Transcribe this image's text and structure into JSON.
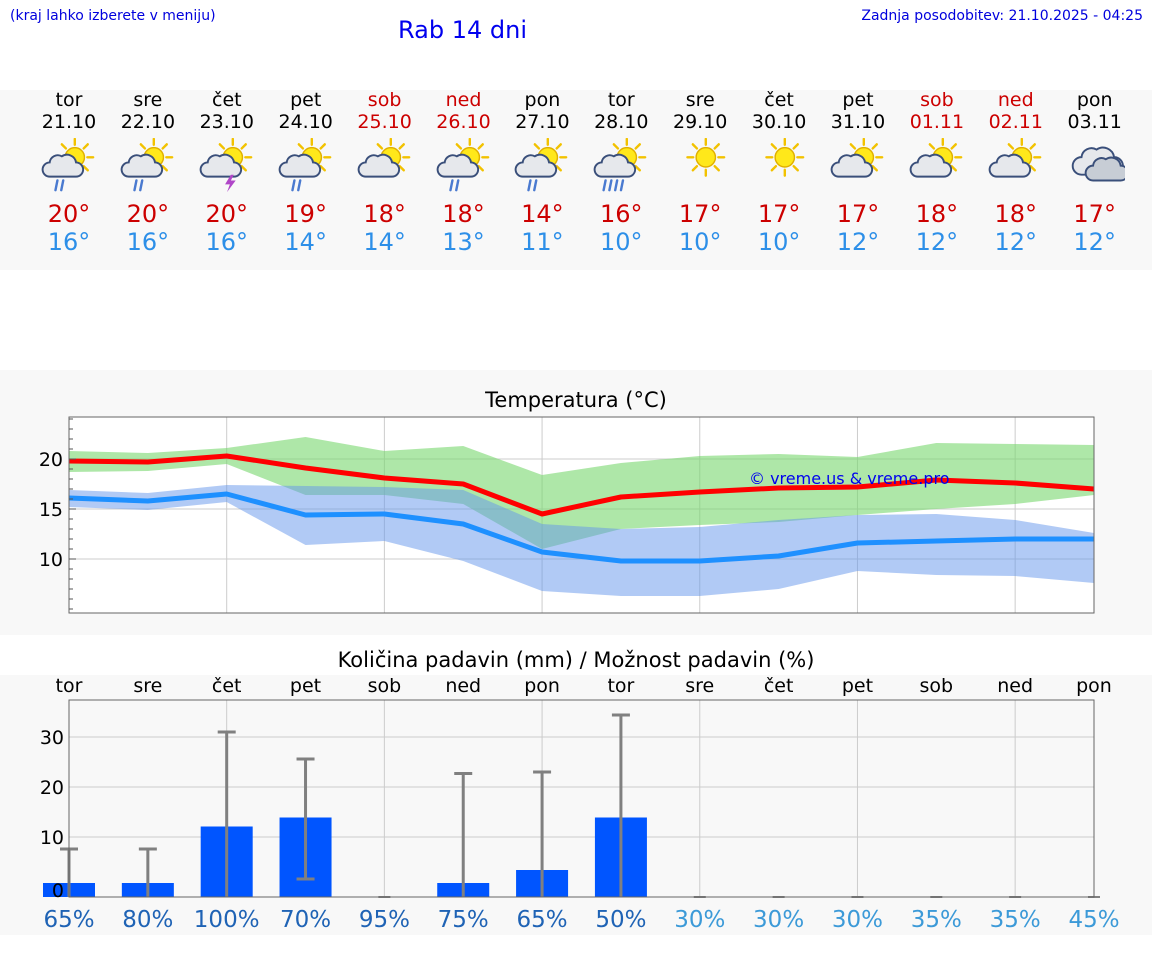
{
  "header": {
    "menu_hint": "(kraj lahko izberete v meniju)",
    "title": "Rab 14 dni",
    "updated": "Zadnja posodobitev: 21.10.2025 - 04:25"
  },
  "colors": {
    "weekday": "#000000",
    "weekend": "#cc0000",
    "tmax": "#cc0000",
    "tmin": "#2d8fe8",
    "max_line": "#ff0000",
    "min_line": "#1e90ff",
    "bar": "#0055ff",
    "whisker": "#808080"
  },
  "days": [
    {
      "name": "tor",
      "date": "21.10",
      "weekend": false,
      "icon": "sun-cloud-rain-icon",
      "tmax": "20°",
      "tmin": "16°"
    },
    {
      "name": "sre",
      "date": "22.10",
      "weekend": false,
      "icon": "sun-cloud-rain-icon",
      "tmax": "20°",
      "tmin": "16°"
    },
    {
      "name": "čet",
      "date": "23.10",
      "weekend": false,
      "icon": "sun-cloud-thunder-icon",
      "tmax": "20°",
      "tmin": "16°"
    },
    {
      "name": "pet",
      "date": "24.10",
      "weekend": false,
      "icon": "sun-cloud-rain-icon",
      "tmax": "19°",
      "tmin": "14°"
    },
    {
      "name": "sob",
      "date": "25.10",
      "weekend": true,
      "icon": "sun-cloud-icon",
      "tmax": "18°",
      "tmin": "14°"
    },
    {
      "name": "ned",
      "date": "26.10",
      "weekend": true,
      "icon": "sun-cloud-rain-icon",
      "tmax": "18°",
      "tmin": "13°"
    },
    {
      "name": "pon",
      "date": "27.10",
      "weekend": false,
      "icon": "sun-cloud-rain-icon",
      "tmax": "14°",
      "tmin": "11°"
    },
    {
      "name": "tor",
      "date": "28.10",
      "weekend": false,
      "icon": "sun-cloud-heavy-rain-icon",
      "tmax": "16°",
      "tmin": "10°"
    },
    {
      "name": "sre",
      "date": "29.10",
      "weekend": false,
      "icon": "sun-icon",
      "tmax": "17°",
      "tmin": "10°"
    },
    {
      "name": "čet",
      "date": "30.10",
      "weekend": false,
      "icon": "sun-icon",
      "tmax": "17°",
      "tmin": "10°"
    },
    {
      "name": "pet",
      "date": "31.10",
      "weekend": false,
      "icon": "sun-cloud-icon",
      "tmax": "17°",
      "tmin": "12°"
    },
    {
      "name": "sob",
      "date": "01.11",
      "weekend": true,
      "icon": "sun-cloud-icon",
      "tmax": "18°",
      "tmin": "12°"
    },
    {
      "name": "ned",
      "date": "02.11",
      "weekend": true,
      "icon": "sun-cloud-icon",
      "tmax": "18°",
      "tmin": "12°"
    },
    {
      "name": "pon",
      "date": "03.11",
      "weekend": false,
      "icon": "cloud-icon",
      "tmax": "17°",
      "tmin": "12°"
    }
  ],
  "chart_data": [
    {
      "type": "line",
      "title": "Temperatura (°C)",
      "watermark": "© vreme.us & vreme.pro",
      "x": [
        0,
        1,
        2,
        3,
        4,
        5,
        6,
        7,
        8,
        9,
        10,
        11,
        12,
        13
      ],
      "ylim": [
        4.6,
        24.2
      ],
      "yticks": [
        10,
        15,
        20
      ],
      "grid": true,
      "series": [
        {
          "values": [
            19.8,
            19.7,
            20.3,
            19.1,
            18.1,
            17.5,
            14.5,
            16.2,
            16.7,
            17.1,
            17.2,
            17.9,
            17.6,
            17.0
          ]
        },
        {
          "values": [
            16.1,
            15.8,
            16.5,
            14.4,
            14.5,
            13.5,
            10.7,
            9.8,
            9.8,
            10.3,
            11.6,
            11.8,
            12.0,
            12.0
          ]
        }
      ],
      "bands": [
        {
          "lower": [
            18.7,
            18.8,
            19.5,
            16.4,
            16.4,
            15.5,
            11.0,
            13.0,
            13.4,
            13.7,
            14.4,
            15.0,
            15.5,
            16.4
          ],
          "upper": [
            20.8,
            20.6,
            21.1,
            22.2,
            20.8,
            21.3,
            18.4,
            19.6,
            20.3,
            20.5,
            20.2,
            21.6,
            21.5,
            21.4
          ]
        },
        {
          "lower": [
            15.2,
            14.9,
            15.7,
            11.4,
            11.8,
            9.8,
            6.8,
            6.3,
            6.3,
            7.0,
            8.8,
            8.4,
            8.3,
            7.6
          ],
          "upper": [
            16.9,
            16.6,
            17.4,
            17.3,
            17.2,
            16.9,
            13.5,
            13.0,
            13.2,
            13.9,
            14.4,
            14.5,
            13.9,
            12.6
          ]
        }
      ]
    },
    {
      "type": "bar",
      "title": "Količina padavin (mm) / Možnost padavin (%)",
      "categories": [
        "tor",
        "sre",
        "čet",
        "pet",
        "sob",
        "ned",
        "pon",
        "tor",
        "sre",
        "čet",
        "pet",
        "sob",
        "ned",
        "pon"
      ],
      "values": [
        0.8,
        0.8,
        12.1,
        13.9,
        0,
        0.8,
        3.4,
        13.9,
        0,
        0,
        0,
        0,
        0,
        0
      ],
      "error_low": [
        0,
        0,
        0,
        1.6,
        0,
        0,
        0,
        0,
        0,
        0,
        0,
        0,
        0,
        0
      ],
      "error_high": [
        7.6,
        7.6,
        31.0,
        25.6,
        0,
        22.7,
        23.0,
        34.4,
        0,
        0,
        0,
        0,
        0,
        0
      ],
      "ylim": [
        -2,
        37.4
      ],
      "yticks": [
        0,
        10,
        20,
        30
      ],
      "grid": true,
      "probabilities": [
        "65%",
        "80%",
        "100%",
        "70%",
        "95%",
        "75%",
        "65%",
        "50%",
        "30%",
        "30%",
        "30%",
        "35%",
        "35%",
        "45%"
      ],
      "prob_high": [
        true,
        true,
        true,
        true,
        true,
        true,
        true,
        true,
        false,
        false,
        false,
        false,
        false,
        false
      ]
    }
  ]
}
